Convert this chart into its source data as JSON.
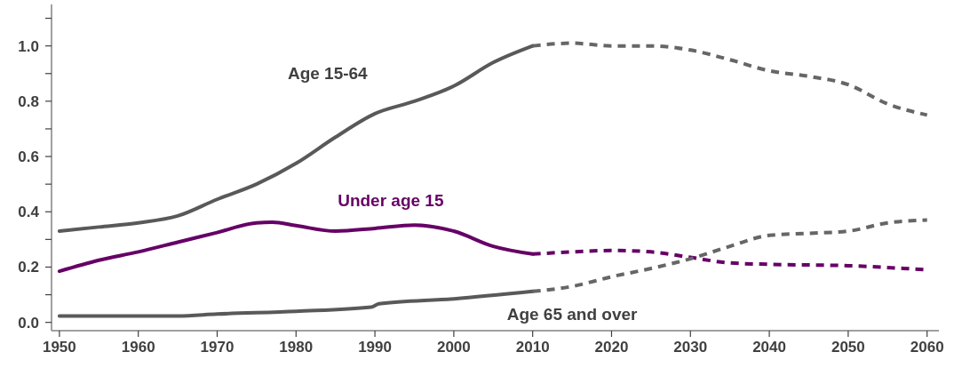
{
  "chart_data": {
    "type": "line",
    "xlim": [
      1949,
      2061.5
    ],
    "xticks": [
      1950,
      1960,
      1970,
      1980,
      1990,
      2000,
      2010,
      2020,
      2030,
      2040,
      2050,
      2060
    ],
    "ylim": [
      -0.03,
      1.15
    ],
    "yticks": [
      {
        "value": 0,
        "label": "0.0"
      },
      {
        "value": 0.1,
        "label": null
      },
      {
        "value": 0.2,
        "label": "0.2"
      },
      {
        "value": 0.3,
        "label": null
      },
      {
        "value": 0.4,
        "label": "0.4"
      },
      {
        "value": 0.5,
        "label": null
      },
      {
        "value": 0.6,
        "label": "0.6"
      },
      {
        "value": 0.7,
        "label": null
      },
      {
        "value": 0.8,
        "label": "0.8"
      },
      {
        "value": 0.9,
        "label": null
      },
      {
        "value": 1.0,
        "label": "1.0"
      },
      {
        "value": 1.1,
        "label": null
      }
    ],
    "grid": false,
    "series": [
      {
        "name": "Age 15-64",
        "color": "#595959",
        "line_style": "solid",
        "x": [
          1950,
          1955,
          1960,
          1965,
          1970,
          1975,
          1980,
          1985,
          1990,
          1995,
          2000,
          2005,
          2010
        ],
        "values": [
          0.33,
          0.345,
          0.36,
          0.385,
          0.445,
          0.5,
          0.575,
          0.67,
          0.755,
          0.8,
          0.855,
          0.94,
          1.0
        ]
      },
      {
        "color": "#666666",
        "line_style": "dashed",
        "x": [
          2010,
          2015,
          2020,
          2025,
          2030,
          2035,
          2040,
          2045,
          2050,
          2055,
          2060
        ],
        "values": [
          1.0,
          1.01,
          1.0,
          1.0,
          0.985,
          0.95,
          0.91,
          0.89,
          0.86,
          0.79,
          0.75
        ]
      },
      {
        "name": "Under age 15",
        "color": "#660066",
        "line_style": "solid",
        "x": [
          1950,
          1955,
          1960,
          1965,
          1970,
          1975,
          1977,
          1980,
          1985,
          1990,
          1995,
          2000,
          2005,
          2010
        ],
        "values": [
          0.185,
          0.225,
          0.255,
          0.29,
          0.325,
          0.36,
          0.362,
          0.35,
          0.33,
          0.34,
          0.352,
          0.33,
          0.275,
          0.247
        ]
      },
      {
        "color": "#660066",
        "line_style": "dashed",
        "x": [
          2010,
          2015,
          2020,
          2025,
          2030,
          2035,
          2040,
          2050,
          2060
        ],
        "values": [
          0.247,
          0.255,
          0.26,
          0.255,
          0.235,
          0.215,
          0.21,
          0.205,
          0.19
        ]
      },
      {
        "name": "Age 65 and over",
        "color": "#595959",
        "line_style": "solid",
        "x": [
          1950,
          1965,
          1970,
          1980,
          1989.5,
          1990.5,
          2000,
          2010
        ],
        "values": [
          0.023,
          0.023,
          0.03,
          0.04,
          0.055,
          0.067,
          0.085,
          0.112
        ]
      },
      {
        "color": "#666666",
        "line_style": "dashed",
        "x": [
          2010,
          2015,
          2020,
          2025,
          2030,
          2035,
          2040,
          2045,
          2050,
          2055,
          2060
        ],
        "values": [
          0.112,
          0.13,
          0.165,
          0.195,
          0.23,
          0.275,
          0.315,
          0.322,
          0.33,
          0.36,
          0.37
        ]
      }
    ]
  }
}
